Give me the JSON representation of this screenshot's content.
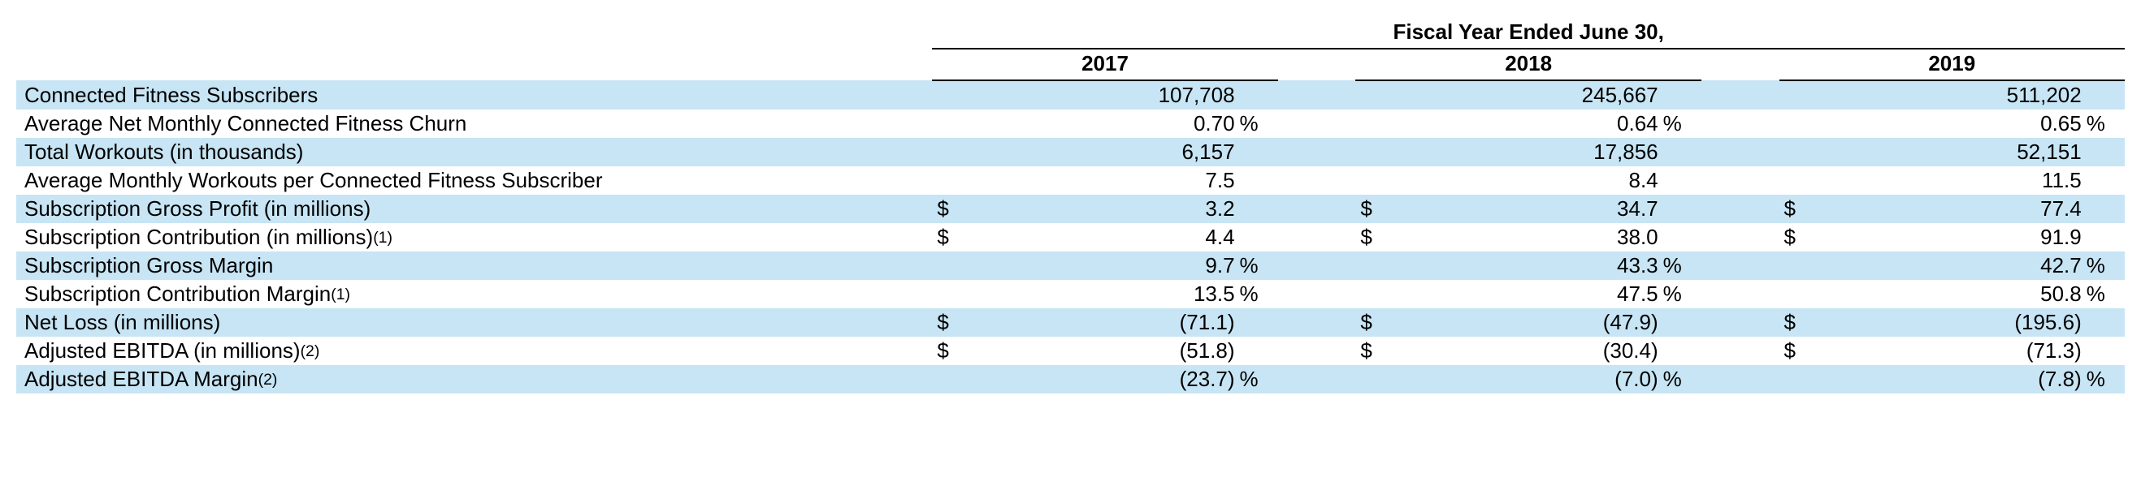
{
  "colors": {
    "row_alt_bg": "#c7e5f4",
    "text": "#000000",
    "bg": "#ffffff",
    "border": "#000000"
  },
  "typography": {
    "font_family": "Arial",
    "base_fontsize_pt": 20,
    "header_weight": "bold"
  },
  "header": {
    "super": "Fiscal Year Ended June 30,",
    "years": [
      "2017",
      "2018",
      "2019"
    ]
  },
  "rows": [
    {
      "label": "Connected Fitness Subscribers",
      "footnote": "",
      "alt": true,
      "cells": [
        {
          "sym": "",
          "num": "107,708",
          "pct": ""
        },
        {
          "sym": "",
          "num": "245,667",
          "pct": ""
        },
        {
          "sym": "",
          "num": "511,202",
          "pct": ""
        }
      ]
    },
    {
      "label": "Average Net Monthly Connected Fitness Churn",
      "footnote": "",
      "alt": false,
      "cells": [
        {
          "sym": "",
          "num": "0.70",
          "pct": "%"
        },
        {
          "sym": "",
          "num": "0.64",
          "pct": "%"
        },
        {
          "sym": "",
          "num": "0.65",
          "pct": "%"
        }
      ]
    },
    {
      "label": "Total Workouts (in thousands)",
      "footnote": "",
      "alt": true,
      "cells": [
        {
          "sym": "",
          "num": "6,157",
          "pct": ""
        },
        {
          "sym": "",
          "num": "17,856",
          "pct": ""
        },
        {
          "sym": "",
          "num": "52,151",
          "pct": ""
        }
      ]
    },
    {
      "label": "Average Monthly Workouts per Connected Fitness Subscriber",
      "footnote": "",
      "alt": false,
      "cells": [
        {
          "sym": "",
          "num": "7.5",
          "pct": ""
        },
        {
          "sym": "",
          "num": "8.4",
          "pct": ""
        },
        {
          "sym": "",
          "num": "11.5",
          "pct": ""
        }
      ]
    },
    {
      "label": "Subscription Gross Profit (in millions)",
      "footnote": "",
      "alt": true,
      "cells": [
        {
          "sym": "$",
          "num": "3.2",
          "pct": ""
        },
        {
          "sym": "$",
          "num": "34.7",
          "pct": ""
        },
        {
          "sym": "$",
          "num": "77.4",
          "pct": ""
        }
      ]
    },
    {
      "label": "Subscription Contribution (in millions)",
      "footnote": "(1)",
      "alt": false,
      "cells": [
        {
          "sym": "$",
          "num": "4.4",
          "pct": ""
        },
        {
          "sym": "$",
          "num": "38.0",
          "pct": ""
        },
        {
          "sym": "$",
          "num": "91.9",
          "pct": ""
        }
      ]
    },
    {
      "label": "Subscription Gross Margin",
      "footnote": "",
      "alt": true,
      "cells": [
        {
          "sym": "",
          "num": "9.7",
          "pct": "%"
        },
        {
          "sym": "",
          "num": "43.3",
          "pct": "%"
        },
        {
          "sym": "",
          "num": "42.7",
          "pct": "%"
        }
      ]
    },
    {
      "label": "Subscription Contribution Margin",
      "footnote": "(1)",
      "alt": false,
      "cells": [
        {
          "sym": "",
          "num": "13.5",
          "pct": "%"
        },
        {
          "sym": "",
          "num": "47.5",
          "pct": "%"
        },
        {
          "sym": "",
          "num": "50.8",
          "pct": "%"
        }
      ]
    },
    {
      "label": "Net Loss (in millions)",
      "footnote": "",
      "alt": true,
      "cells": [
        {
          "sym": "$",
          "num": "(71.1)",
          "pct": ""
        },
        {
          "sym": "$",
          "num": "(47.9)",
          "pct": ""
        },
        {
          "sym": "$",
          "num": "(195.6)",
          "pct": ""
        }
      ]
    },
    {
      "label": "Adjusted EBITDA (in millions)",
      "footnote": "(2)",
      "alt": false,
      "cells": [
        {
          "sym": "$",
          "num": "(51.8)",
          "pct": ""
        },
        {
          "sym": "$",
          "num": "(30.4)",
          "pct": ""
        },
        {
          "sym": "$",
          "num": "(71.3)",
          "pct": ""
        }
      ]
    },
    {
      "label": "Adjusted EBITDA Margin",
      "footnote": "(2)",
      "alt": true,
      "cells": [
        {
          "sym": "",
          "num": "(23.7)",
          "pct": "%"
        },
        {
          "sym": "",
          "num": "(7.0)",
          "pct": "%"
        },
        {
          "sym": "",
          "num": "(7.8)",
          "pct": "%"
        }
      ]
    }
  ]
}
